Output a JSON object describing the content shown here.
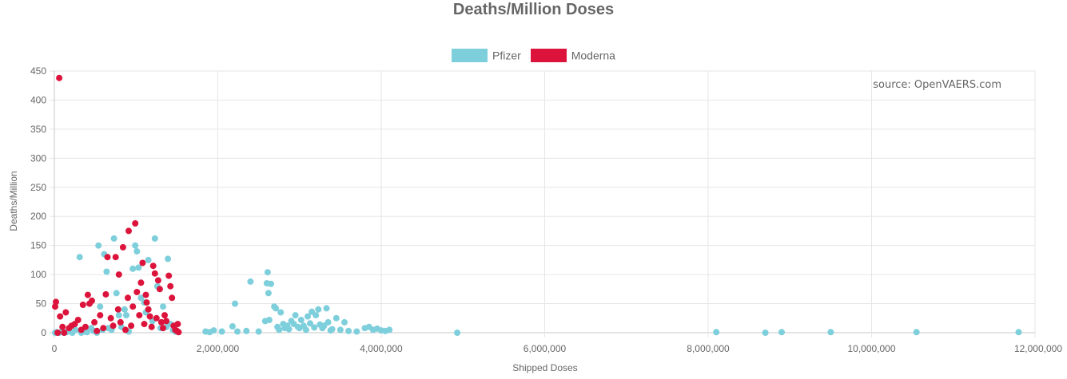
{
  "chart_data": {
    "type": "scatter",
    "title": "Deaths/Million Doses",
    "xlabel": "Shipped Doses",
    "ylabel": "Deaths/Million",
    "xlim": [
      0,
      12000000
    ],
    "ylim": [
      0,
      450
    ],
    "x_ticks": [
      0,
      2000000,
      4000000,
      6000000,
      8000000,
      10000000,
      12000000
    ],
    "x_tick_labels": [
      "0",
      "2,000,000",
      "4,000,000",
      "6,000,000",
      "8,000,000",
      "10,000,000",
      "12,000,000"
    ],
    "y_ticks": [
      0,
      50,
      100,
      150,
      200,
      250,
      300,
      350,
      400,
      450
    ],
    "y_tick_labels": [
      "0",
      "50",
      "100",
      "150",
      "200",
      "250",
      "300",
      "350",
      "400",
      "450"
    ],
    "grid": true,
    "legend_position": "top-center",
    "annotation": "source: OpenVAERS.com",
    "series": [
      {
        "name": "Pfizer",
        "color": "#7ecfdc",
        "points": [
          [
            10000,
            0
          ],
          [
            30000,
            1
          ],
          [
            60000,
            0
          ],
          [
            90000,
            2
          ],
          [
            120000,
            0
          ],
          [
            150000,
            1
          ],
          [
            180000,
            3
          ],
          [
            220000,
            0
          ],
          [
            260000,
            5
          ],
          [
            310000,
            130
          ],
          [
            330000,
            0
          ],
          [
            360000,
            2
          ],
          [
            400000,
            1
          ],
          [
            450000,
            8
          ],
          [
            480000,
            3
          ],
          [
            520000,
            0
          ],
          [
            540000,
            150
          ],
          [
            560000,
            45
          ],
          [
            590000,
            5
          ],
          [
            610000,
            135
          ],
          [
            640000,
            105
          ],
          [
            660000,
            8
          ],
          [
            700000,
            5
          ],
          [
            730000,
            162
          ],
          [
            760000,
            68
          ],
          [
            790000,
            30
          ],
          [
            820000,
            10
          ],
          [
            860000,
            40
          ],
          [
            880000,
            30
          ],
          [
            910000,
            2
          ],
          [
            960000,
            110
          ],
          [
            990000,
            150
          ],
          [
            1010000,
            140
          ],
          [
            1030000,
            112
          ],
          [
            1060000,
            60
          ],
          [
            1100000,
            52
          ],
          [
            1120000,
            35
          ],
          [
            1150000,
            125
          ],
          [
            1200000,
            20
          ],
          [
            1230000,
            162
          ],
          [
            1260000,
            80
          ],
          [
            1300000,
            8
          ],
          [
            1330000,
            45
          ],
          [
            1370000,
            10
          ],
          [
            1390000,
            127
          ],
          [
            1420000,
            15
          ],
          [
            1450000,
            5
          ],
          [
            1480000,
            2
          ],
          [
            1850000,
            2
          ],
          [
            1900000,
            1
          ],
          [
            1950000,
            4
          ],
          [
            2050000,
            2
          ],
          [
            2180000,
            11
          ],
          [
            2210000,
            50
          ],
          [
            2240000,
            2
          ],
          [
            2350000,
            3
          ],
          [
            2400000,
            88
          ],
          [
            2500000,
            2
          ],
          [
            2580000,
            20
          ],
          [
            2600000,
            85
          ],
          [
            2610000,
            104
          ],
          [
            2630000,
            22
          ],
          [
            2650000,
            84
          ],
          [
            2620000,
            68
          ],
          [
            2690000,
            45
          ],
          [
            2710000,
            42
          ],
          [
            2730000,
            10
          ],
          [
            2750000,
            5
          ],
          [
            2770000,
            35
          ],
          [
            2800000,
            15
          ],
          [
            2820000,
            8
          ],
          [
            2850000,
            12
          ],
          [
            2870000,
            6
          ],
          [
            2900000,
            20
          ],
          [
            2930000,
            15
          ],
          [
            2950000,
            30
          ],
          [
            2980000,
            10
          ],
          [
            3000000,
            8
          ],
          [
            3020000,
            22
          ],
          [
            3050000,
            12
          ],
          [
            3080000,
            5
          ],
          [
            3100000,
            28
          ],
          [
            3130000,
            16
          ],
          [
            3150000,
            36
          ],
          [
            3180000,
            9
          ],
          [
            3200000,
            30
          ],
          [
            3230000,
            40
          ],
          [
            3250000,
            14
          ],
          [
            3280000,
            8
          ],
          [
            3300000,
            12
          ],
          [
            3330000,
            42
          ],
          [
            3350000,
            18
          ],
          [
            3380000,
            4
          ],
          [
            3400000,
            6
          ],
          [
            3450000,
            25
          ],
          [
            3500000,
            5
          ],
          [
            3550000,
            18
          ],
          [
            3600000,
            3
          ],
          [
            3700000,
            2
          ],
          [
            3800000,
            8
          ],
          [
            3850000,
            10
          ],
          [
            3900000,
            5
          ],
          [
            3950000,
            7
          ],
          [
            4000000,
            4
          ],
          [
            4050000,
            3
          ],
          [
            4100000,
            5
          ],
          [
            4930000,
            0
          ],
          [
            8100000,
            1
          ],
          [
            8700000,
            0
          ],
          [
            8900000,
            1
          ],
          [
            9500000,
            1
          ],
          [
            10550000,
            1
          ],
          [
            11800000,
            1
          ]
        ]
      },
      {
        "name": "Moderna",
        "color": "#dc143c",
        "points": [
          [
            60000,
            438
          ],
          [
            10000,
            45
          ],
          [
            20000,
            53
          ],
          [
            40000,
            0
          ],
          [
            70000,
            28
          ],
          [
            100000,
            10
          ],
          [
            120000,
            0
          ],
          [
            140000,
            35
          ],
          [
            180000,
            8
          ],
          [
            210000,
            12
          ],
          [
            250000,
            15
          ],
          [
            290000,
            22
          ],
          [
            330000,
            5
          ],
          [
            350000,
            48
          ],
          [
            380000,
            10
          ],
          [
            410000,
            65
          ],
          [
            430000,
            50
          ],
          [
            460000,
            55
          ],
          [
            490000,
            18
          ],
          [
            520000,
            3
          ],
          [
            560000,
            30
          ],
          [
            600000,
            8
          ],
          [
            630000,
            66
          ],
          [
            650000,
            130
          ],
          [
            690000,
            25
          ],
          [
            720000,
            12
          ],
          [
            750000,
            130
          ],
          [
            780000,
            40
          ],
          [
            790000,
            100
          ],
          [
            810000,
            18
          ],
          [
            840000,
            147
          ],
          [
            870000,
            5
          ],
          [
            900000,
            60
          ],
          [
            910000,
            175
          ],
          [
            940000,
            12
          ],
          [
            960000,
            45
          ],
          [
            990000,
            188
          ],
          [
            1010000,
            70
          ],
          [
            1040000,
            30
          ],
          [
            1060000,
            86
          ],
          [
            1080000,
            120
          ],
          [
            1100000,
            15
          ],
          [
            1120000,
            65
          ],
          [
            1130000,
            52
          ],
          [
            1150000,
            40
          ],
          [
            1170000,
            28
          ],
          [
            1190000,
            10
          ],
          [
            1210000,
            115
          ],
          [
            1230000,
            102
          ],
          [
            1250000,
            25
          ],
          [
            1270000,
            90
          ],
          [
            1290000,
            75
          ],
          [
            1310000,
            18
          ],
          [
            1330000,
            8
          ],
          [
            1350000,
            30
          ],
          [
            1370000,
            20
          ],
          [
            1400000,
            98
          ],
          [
            1420000,
            80
          ],
          [
            1440000,
            60
          ],
          [
            1460000,
            12
          ],
          [
            1480000,
            5
          ],
          [
            1500000,
            3
          ],
          [
            1510000,
            15
          ],
          [
            1520000,
            1
          ]
        ]
      }
    ]
  }
}
